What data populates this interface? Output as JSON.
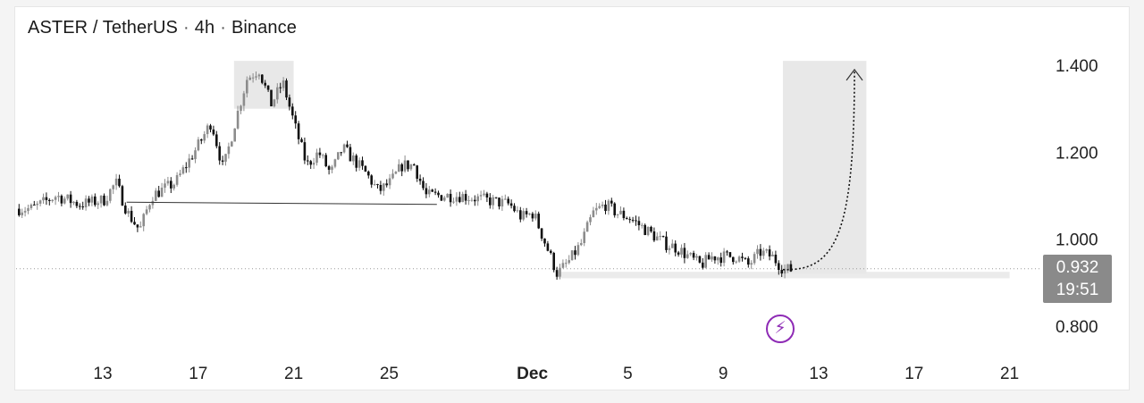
{
  "header": {
    "symbol": "ASTER / TetherUS",
    "sep1": "·",
    "interval": "4h",
    "sep2": "·",
    "exchange": "Binance"
  },
  "price_tag": {
    "price": "0.932",
    "countdown": "19:51"
  },
  "icons": {
    "bolt": "lightning-bolt-icon"
  },
  "colors": {
    "up": "#8c8c8c",
    "down": "#111111",
    "shade": "#e8e8e8",
    "bolt": "#8e2bb5"
  },
  "chart_data": {
    "type": "candlestick",
    "title": "ASTER / TetherUS · 4h · Binance",
    "y_ticks": [
      1.4,
      1.2,
      1.0,
      0.8
    ],
    "y_tick_labels": [
      "1.400",
      "1.200",
      "1.000",
      "0.800"
    ],
    "ylim": [
      0.72,
      1.47
    ],
    "x_tick_labels": [
      "13",
      "17",
      "21",
      "25",
      "Dec",
      "5",
      "9",
      "13",
      "17",
      "21"
    ],
    "x_tick_dates": [
      "2025-11-13",
      "2025-11-17",
      "2025-11-21",
      "2025-11-25",
      "2025-12-01",
      "2025-12-05",
      "2025-12-09",
      "2025-12-13",
      "2025-12-17",
      "2025-12-21"
    ],
    "current_price": 0.932,
    "grid": false,
    "close_series": {
      "name": "",
      "points": [
        [
          "2025-11-10",
          1.07
        ],
        [
          "2025-11-11",
          1.1
        ],
        [
          "2025-11-12",
          1.08
        ],
        [
          "2025-11-13",
          1.09
        ],
        [
          "2025-11-13T12:00",
          1.13
        ],
        [
          "2025-11-14",
          1.06
        ],
        [
          "2025-11-14T12:00",
          1.02
        ],
        [
          "2025-11-15",
          1.1
        ],
        [
          "2025-11-16",
          1.13
        ],
        [
          "2025-11-17",
          1.22
        ],
        [
          "2025-11-17T12:00",
          1.27
        ],
        [
          "2025-11-18",
          1.16
        ],
        [
          "2025-11-18T12:00",
          1.27
        ],
        [
          "2025-11-19",
          1.37
        ],
        [
          "2025-11-19T12:00",
          1.39
        ],
        [
          "2025-11-20",
          1.31
        ],
        [
          "2025-11-20T12:00",
          1.36
        ],
        [
          "2025-11-21",
          1.26
        ],
        [
          "2025-11-21T12:00",
          1.17
        ],
        [
          "2025-11-22",
          1.2
        ],
        [
          "2025-11-22T12:00",
          1.15
        ],
        [
          "2025-11-23",
          1.21
        ],
        [
          "2025-11-23T12:00",
          1.18
        ],
        [
          "2025-11-24",
          1.15
        ],
        [
          "2025-11-24T12:00",
          1.11
        ],
        [
          "2025-11-25",
          1.13
        ],
        [
          "2025-11-25T12:00",
          1.17
        ],
        [
          "2025-11-26",
          1.17
        ],
        [
          "2025-11-26T12:00",
          1.1
        ],
        [
          "2025-11-27",
          1.1
        ],
        [
          "2025-11-28",
          1.1
        ],
        [
          "2025-11-29",
          1.09
        ],
        [
          "2025-11-30",
          1.08
        ],
        [
          "2025-11-30T12:00",
          1.05
        ],
        [
          "2025-12-01",
          1.06
        ],
        [
          "2025-12-01T12:00",
          0.99
        ],
        [
          "2025-12-02",
          0.92
        ],
        [
          "2025-12-02T12:00",
          0.95
        ],
        [
          "2025-12-03",
          0.99
        ],
        [
          "2025-12-03T12:00",
          1.06
        ],
        [
          "2025-12-04",
          1.08
        ],
        [
          "2025-12-04T12:00",
          1.06
        ],
        [
          "2025-12-05",
          1.05
        ],
        [
          "2025-12-05T12:00",
          1.03
        ],
        [
          "2025-12-06",
          1.01
        ],
        [
          "2025-12-06T12:00",
          0.99
        ],
        [
          "2025-12-07",
          0.98
        ],
        [
          "2025-12-07T12:00",
          0.96
        ],
        [
          "2025-12-08",
          0.94
        ],
        [
          "2025-12-08T12:00",
          0.96
        ],
        [
          "2025-12-09",
          0.96
        ],
        [
          "2025-12-09T12:00",
          0.96
        ],
        [
          "2025-12-10",
          0.94
        ],
        [
          "2025-12-10T12:00",
          0.97
        ],
        [
          "2025-12-11",
          0.96
        ],
        [
          "2025-12-11T12:00",
          0.93
        ]
      ]
    },
    "annotations": [
      {
        "kind": "neckline",
        "from": [
          "2025-11-14",
          1.085
        ],
        "to": [
          "2025-11-27",
          1.08
        ]
      },
      {
        "kind": "support-zone",
        "from": "2025-12-02",
        "to": "2025-12-21",
        "low": 0.91,
        "high": 0.925
      },
      {
        "kind": "peak-box",
        "from": "2025-11-18T12:00",
        "to": "2025-11-21",
        "low": 1.3,
        "high": 1.41
      },
      {
        "kind": "target-box",
        "from": "2025-12-11T12:00",
        "to": "2025-12-15",
        "low": 0.92,
        "high": 1.41
      },
      {
        "kind": "projection-arrow",
        "from": [
          "2025-12-11T12:00",
          0.93
        ],
        "to": [
          "2025-12-14T12:00",
          1.39
        ]
      }
    ]
  }
}
